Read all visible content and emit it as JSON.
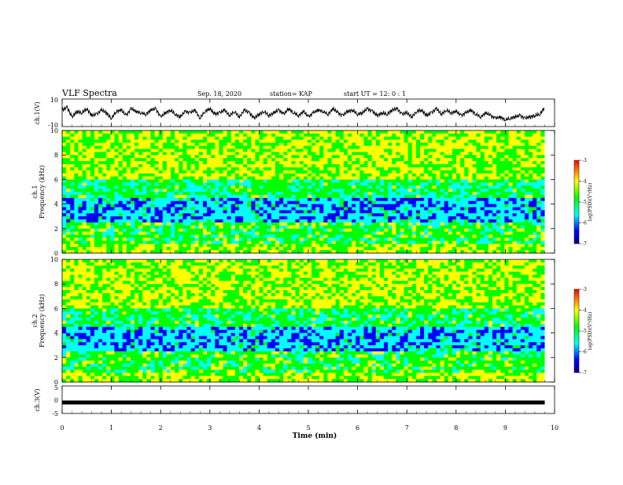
{
  "header": {
    "title": "VLF Spectra",
    "date": "Sep. 18, 2020",
    "station": "station= KAP",
    "start_ut": "start  UT =   12: 0  : 1"
  },
  "chart_data": [
    {
      "type": "line",
      "panel": "ch1-waveform",
      "ylabel": "ch.1(V)",
      "ylim": [
        -10,
        10
      ],
      "yticks": [
        "10",
        "-10"
      ],
      "xlim": [
        0,
        10
      ],
      "series": [
        {
          "x": [
            0,
            0.1,
            0.2,
            0.3,
            0.4,
            0.5,
            0.6,
            0.7,
            0.8,
            0.9,
            1.0,
            1.1,
            1.2,
            1.3,
            1.4,
            1.5,
            1.6,
            1.7,
            1.8,
            1.9,
            2.0,
            2.1,
            2.2,
            2.3,
            2.4,
            2.5,
            2.6,
            2.7,
            2.8,
            2.9,
            3.0,
            3.1,
            3.2,
            3.3,
            3.4,
            3.5,
            3.6,
            3.7,
            3.8,
            3.9,
            4.0,
            4.1,
            4.2,
            4.3,
            4.4,
            4.5,
            4.6,
            4.7,
            4.8,
            4.9,
            5.0,
            5.1,
            5.2,
            5.3,
            5.4,
            5.5,
            5.6,
            5.7,
            5.8,
            5.9,
            6.0,
            6.1,
            6.2,
            6.3,
            6.4,
            6.5,
            6.6,
            6.7,
            6.8,
            6.9,
            7.0,
            7.1,
            7.2,
            7.3,
            7.4,
            7.5,
            7.6,
            7.7,
            7.8,
            7.9,
            8.0,
            8.1,
            8.2,
            8.3,
            8.4,
            8.5,
            8.6,
            8.7,
            8.8,
            8.9,
            9.0,
            9.1,
            9.2,
            9.3,
            9.4,
            9.5,
            9.6,
            9.7,
            9.8
          ],
          "y": [
            2,
            4,
            -3,
            1,
            0,
            3,
            -2,
            -1,
            2,
            0,
            -4,
            1,
            2,
            -2,
            3,
            1,
            0,
            -1,
            2,
            3,
            -3,
            0,
            2,
            -1,
            -3,
            1,
            0,
            2,
            -4,
            1,
            3,
            -1,
            0,
            2,
            -2,
            1,
            -3,
            2,
            0,
            -4,
            -1,
            1,
            -2,
            0,
            2,
            -1,
            3,
            0,
            -2,
            1,
            -3,
            0,
            2,
            1,
            -1,
            3,
            0,
            -2,
            1,
            2,
            -1,
            0,
            3,
            1,
            -2,
            0,
            -1,
            2,
            3,
            -1,
            0,
            -3,
            1,
            2,
            -2,
            0,
            3,
            -1,
            2,
            0,
            1,
            -2,
            0,
            2,
            -1,
            -3,
            0,
            -2,
            -4,
            -3,
            -5,
            -4,
            -3,
            -2,
            -4,
            -3,
            -2,
            -1,
            4
          ]
        }
      ]
    },
    {
      "type": "heatmap",
      "panel": "ch1-spectrogram",
      "ylabel": "ch.1\nFrequency (kHz)",
      "ylabel_line1": "ch.1",
      "ylabel_line2": "Frequency (kHz)",
      "ylim": [
        0,
        10
      ],
      "yticks": [
        "0",
        "2",
        "4",
        "6",
        "8",
        "10"
      ],
      "xlim": [
        0,
        10
      ],
      "colorbar": {
        "label": "log(PSD)(V²/Hz)",
        "range": [
          -7,
          -3
        ],
        "ticks": [
          "-3",
          "-4",
          "-5",
          "-6",
          "-7"
        ]
      }
    },
    {
      "type": "heatmap",
      "panel": "ch2-spectrogram",
      "ylabel_line1": "ch.2",
      "ylabel_line2": "Frequency (kHz)",
      "ylim": [
        0,
        10
      ],
      "yticks": [
        "0",
        "2",
        "4",
        "6",
        "8",
        "10"
      ],
      "xlim": [
        0,
        10
      ],
      "colorbar": {
        "label": "log(PSD)(V²/Hz)",
        "range": [
          -7,
          -3
        ],
        "ticks": [
          "-3",
          "-4",
          "-5",
          "-6",
          "-7"
        ]
      }
    },
    {
      "type": "line",
      "panel": "ch3-waveform",
      "ylabel": "ch.3(V)",
      "ylim": [
        -5,
        5
      ],
      "yticks": [
        "5",
        "0",
        "-5"
      ],
      "xlim": [
        0,
        10
      ],
      "series": [
        {
          "x": [
            0,
            9.8
          ],
          "y": [
            -1,
            -1
          ]
        }
      ]
    }
  ],
  "xaxis": {
    "label": "Time (min)",
    "ticks": [
      "0",
      "1",
      "2",
      "3",
      "4",
      "5",
      "6",
      "7",
      "8",
      "9",
      "10"
    ]
  },
  "colors": {
    "axis": "#000000",
    "trace": "#000000",
    "colormap": [
      "#000080",
      "#0000ff",
      "#00ffff",
      "#00ff00",
      "#ffff00",
      "#ff0000"
    ]
  }
}
